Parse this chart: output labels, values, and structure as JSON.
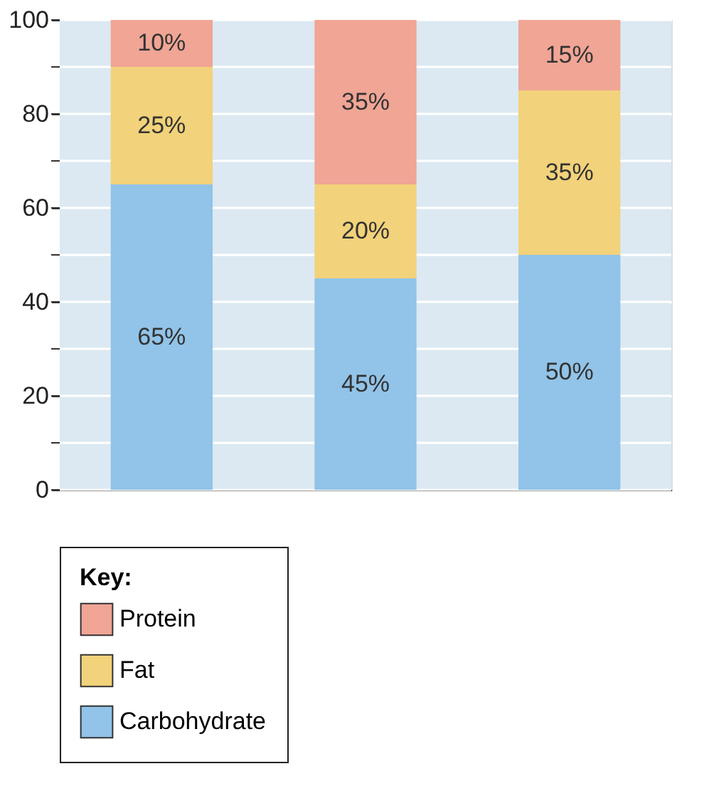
{
  "chart_data": {
    "type": "bar",
    "stacked": true,
    "categories": [
      null,
      null,
      null
    ],
    "series": [
      {
        "name": "Carbohydrate",
        "color": "#92c3e8",
        "values": [
          65,
          45,
          50
        ],
        "value_labels": [
          "65%",
          "45%",
          "50%"
        ]
      },
      {
        "name": "Fat",
        "color": "#f2d27a",
        "values": [
          25,
          20,
          35
        ],
        "value_labels": [
          "25%",
          "20%",
          "35%"
        ]
      },
      {
        "name": "Protein",
        "color": "#f0a595",
        "values": [
          10,
          35,
          15
        ],
        "value_labels": [
          "10%",
          "35%",
          "15%"
        ]
      }
    ],
    "legend_title": "Key:",
    "legend": "bottom",
    "grid": "y",
    "tick_labels": "y",
    "ylim": [
      0,
      100
    ],
    "yticks": [
      0,
      {
        "value": 10,
        "label": null
      },
      20,
      {
        "value": 30,
        "label": null
      },
      40,
      {
        "value": 50,
        "label": null
      },
      60,
      {
        "value": 70,
        "label": null
      },
      80,
      {
        "value": 90,
        "label": null
      },
      100
    ]
  }
}
